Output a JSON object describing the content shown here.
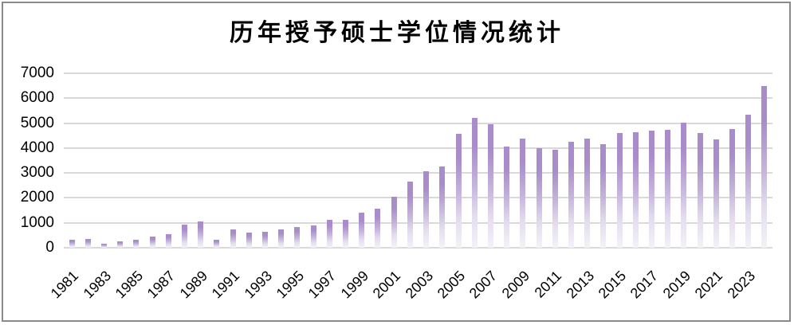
{
  "window": {
    "background": "#ffffff",
    "border_color": "#8a8a8a"
  },
  "chart_data": {
    "type": "bar",
    "title": "历年授予硕士学位情况统计",
    "xlabel": "",
    "ylabel": "",
    "categories": [
      1981,
      1982,
      1983,
      1984,
      1985,
      1986,
      1987,
      1988,
      1989,
      1990,
      1991,
      1992,
      1993,
      1994,
      1995,
      1996,
      1997,
      1998,
      1999,
      2000,
      2001,
      2002,
      2003,
      2004,
      2005,
      2006,
      2007,
      2008,
      2009,
      2010,
      2011,
      2012,
      2013,
      2014,
      2015,
      2016,
      2017,
      2018,
      2019,
      2020,
      2021,
      2022,
      2023,
      2024
    ],
    "values": [
      310,
      340,
      150,
      250,
      310,
      460,
      530,
      940,
      1070,
      310,
      730,
      600,
      640,
      750,
      830,
      900,
      1110,
      1130,
      1410,
      1580,
      2060,
      2660,
      3060,
      3250,
      4560,
      5220,
      4970,
      4060,
      4390,
      4010,
      3920,
      4250,
      4390,
      4150,
      4590,
      4640,
      4700,
      4740,
      5020,
      4600,
      4340,
      4760,
      5350,
      6480
    ],
    "ylim": [
      0,
      7000
    ],
    "yticks": [
      0,
      1000,
      2000,
      3000,
      4000,
      5000,
      6000,
      7000
    ],
    "ytick_labels": [
      "0",
      "1000",
      "2000",
      "3000",
      "4000",
      "5000",
      "6000",
      "7000"
    ],
    "xtick_labels": [
      "1981",
      "1983",
      "1985",
      "1987",
      "1989",
      "1991",
      "1993",
      "1995",
      "1997",
      "1999",
      "2001",
      "2003",
      "2005",
      "2007",
      "2009",
      "2011",
      "2013",
      "2015",
      "2017",
      "2019",
      "2021",
      "2023"
    ],
    "xtick_every": 2,
    "grid": "horizontal",
    "legend": "none",
    "colors": {
      "bar_top": "#a88dca",
      "bar_mid": "#c5b4dc",
      "bar_fade": "#f4f2f8",
      "gridline": "#d9d9d9",
      "axis_text": "#000000",
      "title_text": "#000000"
    }
  }
}
